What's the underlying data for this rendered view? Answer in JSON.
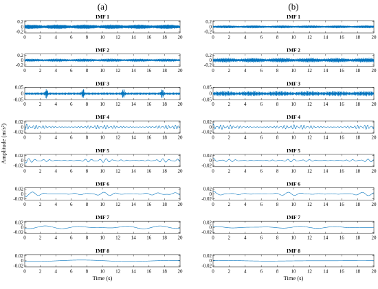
{
  "chart_data": [
    {
      "panel": "(a)",
      "type": "line",
      "xlabel": "Time (s)",
      "ylabel": "Amplitude (m/s²)",
      "xlim": [
        0,
        20
      ],
      "xticks": [
        "0",
        "2",
        "4",
        "6",
        "8",
        "10",
        "12",
        "14",
        "16",
        "18",
        "20"
      ],
      "line_color": "#0072BD",
      "subplots": [
        {
          "title": "IMF 1",
          "ylim": [
            -0.25,
            0.25
          ],
          "yticks": [
            "0.2",
            "0",
            "-0.2"
          ],
          "amplitude": 0.09,
          "frequency_hz": 45,
          "envelope": "noise"
        },
        {
          "title": "IMF 2",
          "ylim": [
            -0.25,
            0.25
          ],
          "yticks": [
            "0.2",
            "0",
            "-0.2"
          ],
          "amplitude": 0.06,
          "frequency_hz": 28,
          "envelope": "noise"
        },
        {
          "title": "IMF 3",
          "ylim": [
            -0.05,
            0.05
          ],
          "yticks": [
            "0.05",
            "0",
            "-0.05"
          ],
          "amplitude": 0.012,
          "frequency_hz": 14,
          "envelope": "bursts",
          "burst_times": [
            2.8,
            7.5,
            12.7,
            17.7
          ],
          "burst_amplitude": 0.035
        },
        {
          "title": "IMF 4",
          "ylim": [
            -0.025,
            0.025
          ],
          "yticks": [
            "0.02",
            "0",
            "-0.02"
          ],
          "amplitude": 0.009,
          "frequency_hz": 2.4,
          "envelope": "modulated"
        },
        {
          "title": "IMF 5",
          "ylim": [
            -0.025,
            0.025
          ],
          "yticks": [
            "0.02",
            "0",
            "-0.02"
          ],
          "amplitude": 0.008,
          "frequency_hz": 1.1,
          "envelope": "modulated"
        },
        {
          "title": "IMF 6",
          "ylim": [
            -0.025,
            0.025
          ],
          "yticks": [
            "0.02",
            "0",
            "-0.02"
          ],
          "amplitude": 0.008,
          "frequency_hz": 0.55,
          "envelope": "modulated"
        },
        {
          "title": "IMF 7",
          "ylim": [
            -0.025,
            0.025
          ],
          "yticks": [
            "0.02",
            "0",
            "-0.02"
          ],
          "amplitude": 0.006,
          "frequency_hz": 0.2,
          "envelope": "smooth"
        },
        {
          "title": "IMF 8",
          "ylim": [
            -0.025,
            0.025
          ],
          "yticks": [
            "0.02",
            "0",
            "-0.02"
          ],
          "amplitude": 0.003,
          "frequency_hz": 0.07,
          "envelope": "smooth"
        }
      ]
    },
    {
      "panel": "(b)",
      "type": "line",
      "xlabel": "Time (s)",
      "ylabel": "",
      "xlim": [
        0,
        20
      ],
      "xticks": [
        "0",
        "2",
        "4",
        "6",
        "8",
        "10",
        "12",
        "14",
        "16",
        "18",
        "20"
      ],
      "line_color": "#0072BD",
      "subplots": [
        {
          "title": "IMF 1",
          "ylim": [
            -0.25,
            0.25
          ],
          "yticks": [
            "0.2",
            "0",
            "-0.2"
          ],
          "amplitude": 0.1,
          "frequency_hz": 45,
          "envelope": "noise"
        },
        {
          "title": "IMF 2",
          "ylim": [
            -0.25,
            0.25
          ],
          "yticks": [
            "0.2",
            "0",
            "-0.2"
          ],
          "amplitude": 0.09,
          "frequency_hz": 28,
          "envelope": "noise"
        },
        {
          "title": "IMF 3",
          "ylim": [
            -0.05,
            0.05
          ],
          "yticks": [
            "0.05",
            "0",
            "-0.05"
          ],
          "amplitude": 0.02,
          "frequency_hz": 14,
          "envelope": "noise"
        },
        {
          "title": "IMF 4",
          "ylim": [
            -0.025,
            0.025
          ],
          "yticks": [
            "0.02",
            "0",
            "-0.02"
          ],
          "amplitude": 0.01,
          "frequency_hz": 2.4,
          "envelope": "modulated"
        },
        {
          "title": "IMF 5",
          "ylim": [
            -0.025,
            0.025
          ],
          "yticks": [
            "0.02",
            "0",
            "-0.02"
          ],
          "amplitude": 0.006,
          "frequency_hz": 1.1,
          "envelope": "modulated"
        },
        {
          "title": "IMF 6",
          "ylim": [
            -0.025,
            0.025
          ],
          "yticks": [
            "0.02",
            "0",
            "-0.02"
          ],
          "amplitude": 0.007,
          "frequency_hz": 0.55,
          "envelope": "modulated"
        },
        {
          "title": "IMF 7",
          "ylim": [
            -0.025,
            0.025
          ],
          "yticks": [
            "0.02",
            "0",
            "-0.02"
          ],
          "amplitude": 0.004,
          "frequency_hz": 0.2,
          "envelope": "smooth"
        },
        {
          "title": "IMF 8",
          "ylim": [
            -0.025,
            0.025
          ],
          "yticks": [
            "0.02",
            "0",
            "-0.02"
          ],
          "amplitude": 0.002,
          "frequency_hz": 0.07,
          "envelope": "smooth"
        }
      ]
    }
  ]
}
